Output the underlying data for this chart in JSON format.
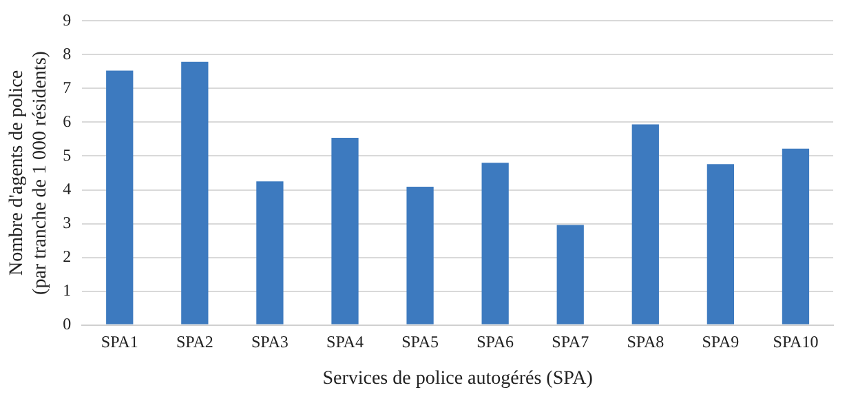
{
  "chart_data": {
    "type": "bar",
    "xlabel": "Services de police autogérés (SPA)",
    "ylabel": "Nombre d'agents de police (par tranche de 1 000 résidents)",
    "categories": [
      "SPA1",
      "SPA2",
      "SPA3",
      "SPA4",
      "SPA5",
      "SPA6",
      "SPA7",
      "SPA8",
      "SPA9",
      "SPA10"
    ],
    "values": [
      7.53,
      7.79,
      4.25,
      5.54,
      4.09,
      4.8,
      2.96,
      5.94,
      4.76,
      5.22
    ],
    "color": "#3d7abf",
    "ylim": [
      0,
      9
    ],
    "yticks": [
      0,
      1,
      2,
      3,
      4,
      5,
      6,
      7,
      8,
      9
    ],
    "grid": "y",
    "legend": false
  }
}
